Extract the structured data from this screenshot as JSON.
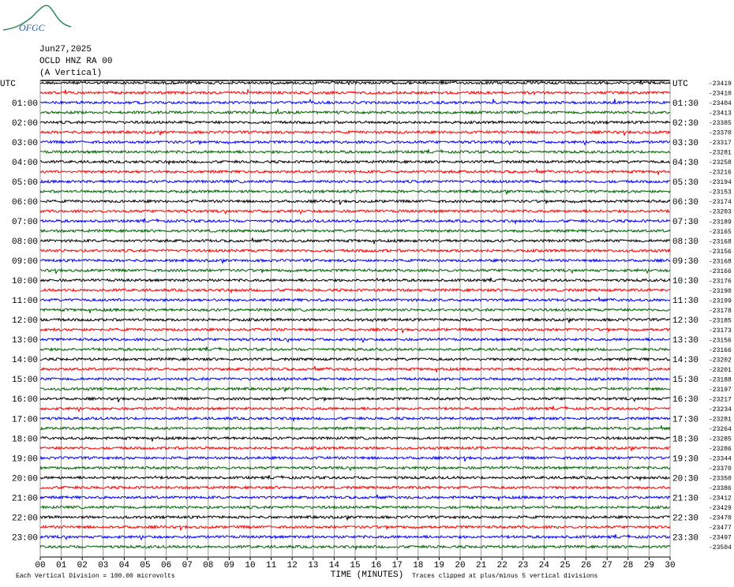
{
  "logo": {
    "text": "OFGC"
  },
  "header": {
    "date": "Jun27,2025",
    "station": "OCLD HNZ RA 00",
    "component": "(A Vertical)"
  },
  "left_labels": [
    "UTC",
    "01:00",
    "02:00",
    "03:00",
    "04:00",
    "05:00",
    "06:00",
    "07:00",
    "08:00",
    "09:00",
    "10:00",
    "11:00",
    "12:00",
    "13:00",
    "14:00",
    "15:00",
    "16:00",
    "17:00",
    "18:00",
    "19:00",
    "20:00",
    "21:00",
    "22:00",
    "23:00"
  ],
  "right_labels": [
    "UTC",
    "01:30",
    "02:30",
    "03:30",
    "04:30",
    "05:30",
    "06:30",
    "07:30",
    "08:30",
    "09:30",
    "10:30",
    "11:30",
    "12:30",
    "13:30",
    "14:30",
    "15:30",
    "16:30",
    "17:30",
    "18:30",
    "19:30",
    "20:30",
    "21:30",
    "22:30",
    "23:30"
  ],
  "trace_values": [
    -23419,
    -23410,
    -23404,
    -23413,
    -23385,
    -23370,
    -23317,
    -23281,
    -23258,
    -23216,
    -23194,
    -23153,
    -23174,
    -23203,
    -23189,
    -23165,
    -23168,
    -23156,
    -23168,
    -23166,
    -23176,
    -23190,
    -23199,
    -23178,
    -23185,
    -23173,
    -23156,
    -23166,
    -23202,
    -23201,
    -23188,
    -23197,
    -23217,
    -23234,
    -23281,
    -23264,
    -23285,
    -23286,
    -23344,
    -23370,
    -23350,
    -23386,
    -23412,
    -23429,
    -23470,
    -23477,
    -23497,
    -23504
  ],
  "trace_colors": [
    "#000000",
    "#ff0000",
    "#0000ff",
    "#006400"
  ],
  "x_axis": {
    "title": "TIME (MINUTES)",
    "ticks": [
      "00",
      "01",
      "02",
      "03",
      "04",
      "05",
      "06",
      "07",
      "08",
      "09",
      "10",
      "11",
      "12",
      "13",
      "14",
      "15",
      "16",
      "17",
      "18",
      "19",
      "20",
      "21",
      "22",
      "23",
      "24",
      "25",
      "26",
      "27",
      "28",
      "29",
      "30"
    ]
  },
  "footer": {
    "scale": "Each Vertical Division =  100.00 microvolts",
    "clip": "Traces clipped at plus/minus 5 vertical divisions"
  }
}
